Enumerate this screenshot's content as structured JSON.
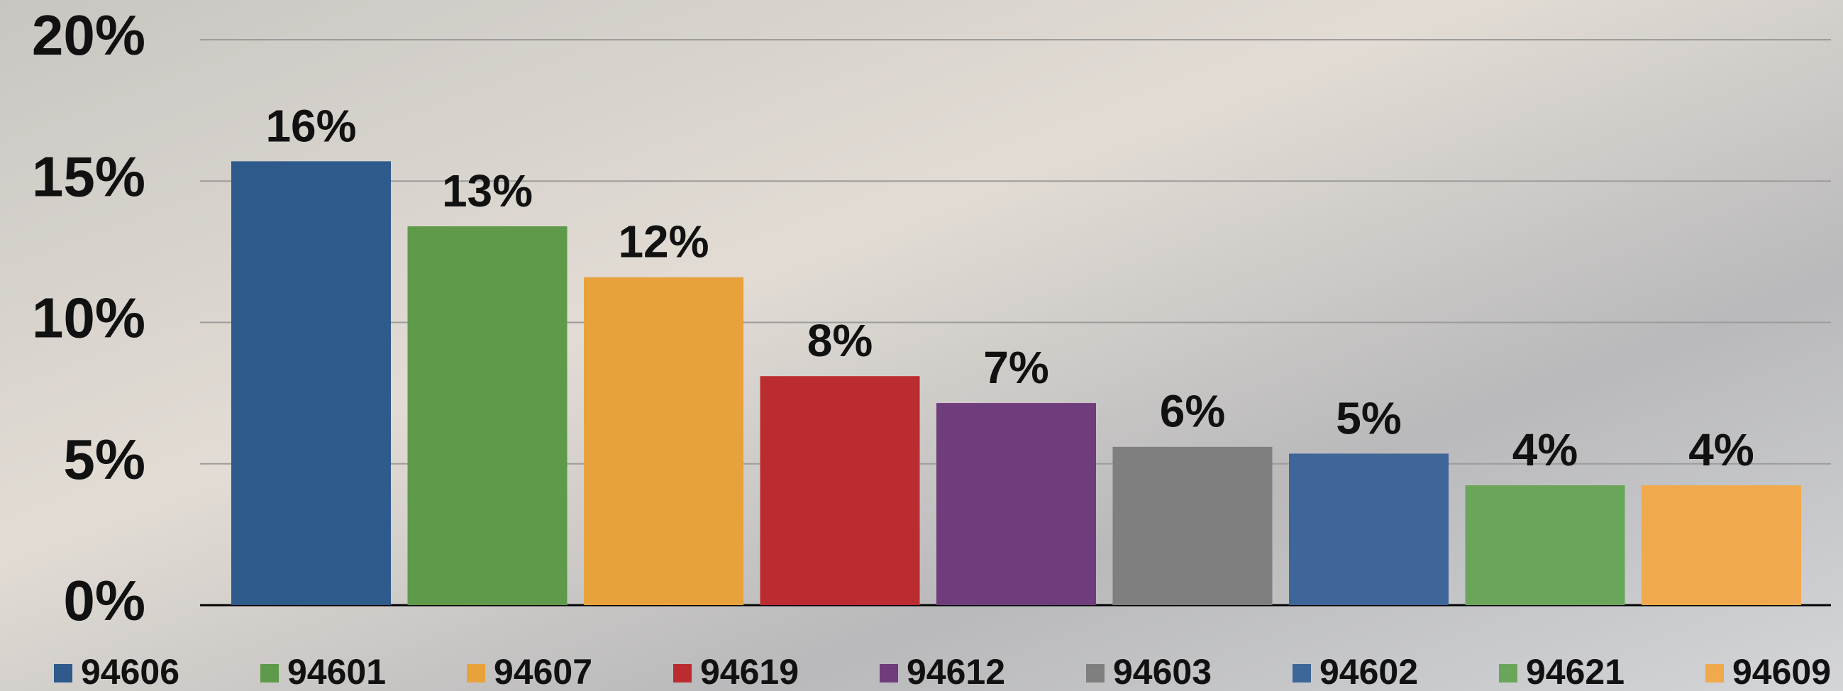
{
  "chart_data": {
    "type": "bar",
    "series": [
      {
        "name": "94606",
        "color": "#2e5a8c",
        "values": [
          15.7
        ],
        "value_labels": [
          "16%"
        ]
      },
      {
        "name": "94601",
        "color": "#5e9a4a",
        "values": [
          13.4
        ],
        "value_labels": [
          "13%"
        ]
      },
      {
        "name": "94607",
        "color": "#e8a23c",
        "values": [
          11.6
        ],
        "value_labels": [
          "12%"
        ]
      },
      {
        "name": "94619",
        "color": "#bb2c30",
        "values": [
          8.1
        ],
        "value_labels": [
          "8%"
        ]
      },
      {
        "name": "94612",
        "color": "#6f3d7c",
        "values": [
          7.15
        ],
        "value_labels": [
          "7%"
        ]
      },
      {
        "name": "94603",
        "color": "#7f7f7f",
        "values": [
          5.6
        ],
        "value_labels": [
          "6%"
        ]
      },
      {
        "name": "94602",
        "color": "#3f6698",
        "values": [
          5.36
        ],
        "value_labels": [
          "5%"
        ]
      },
      {
        "name": "94621",
        "color": "#6aa65a",
        "values": [
          4.24
        ],
        "value_labels": [
          "4%"
        ]
      },
      {
        "name": "94609",
        "color": "#f0a94c",
        "values": [
          4.24
        ],
        "value_labels": [
          "4%"
        ]
      }
    ],
    "ylim": [
      0,
      20
    ],
    "yticks": [
      {
        "value": 0,
        "label": "0%"
      },
      {
        "value": 5,
        "label": "5%"
      },
      {
        "value": 10,
        "label": "10%"
      },
      {
        "value": 15,
        "label": "15%"
      },
      {
        "value": 20,
        "label": "20%"
      }
    ],
    "grid": true,
    "legend": "bottom"
  }
}
